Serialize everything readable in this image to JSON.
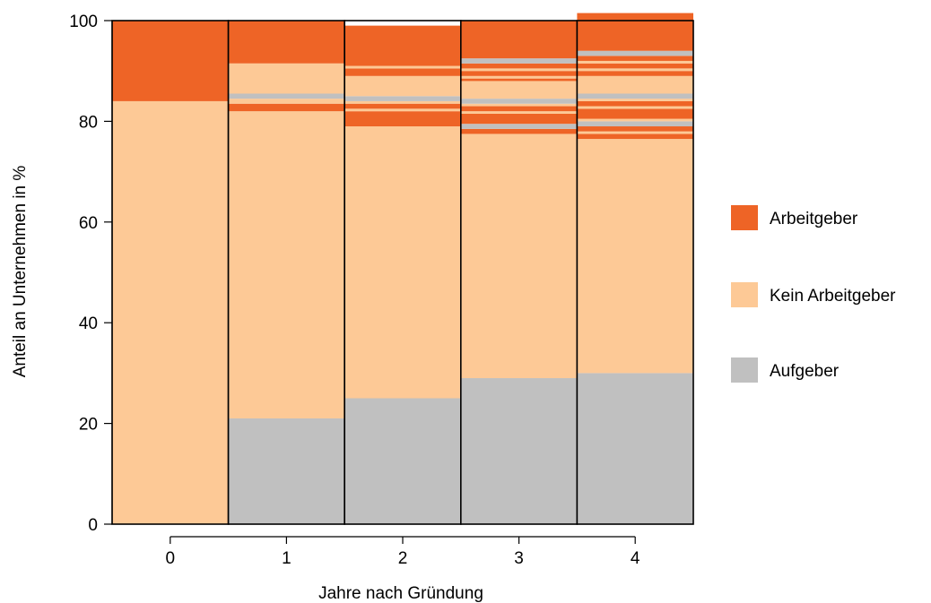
{
  "chart_data": {
    "type": "bar",
    "stacked": true,
    "xlabel": "Jahre nach Gründung",
    "ylabel": "Anteil an Unternehmen in %",
    "ylim": [
      0,
      100
    ],
    "yticks": [
      0,
      20,
      40,
      60,
      80,
      100
    ],
    "grid": false,
    "legend_position": "right",
    "categories": [
      "0",
      "1",
      "2",
      "3",
      "4"
    ],
    "legend": [
      {
        "label": "Arbeitgeber",
        "color": "#ee6426"
      },
      {
        "label": "Kein Arbeitgeber",
        "color": "#fdc996"
      },
      {
        "label": "Aufgeber",
        "color": "#c0c0c0"
      }
    ],
    "segments": [
      [
        {
          "status": "Kein Arbeitgeber",
          "value": 84
        },
        {
          "status": "Arbeitgeber",
          "value": 16
        }
      ],
      [
        {
          "status": "Aufgeber",
          "value": 21
        },
        {
          "status": "Kein Arbeitgeber",
          "value": 61
        },
        {
          "status": "Arbeitgeber",
          "value": 1.5
        },
        {
          "status": "Kein Arbeitgeber",
          "value": 1
        },
        {
          "status": "Aufgeber",
          "value": 1
        },
        {
          "status": "Kein Arbeitgeber",
          "value": 6
        },
        {
          "status": "Arbeitgeber",
          "value": 8.5
        }
      ],
      [
        {
          "status": "Aufgeber",
          "value": 25
        },
        {
          "status": "Kein Arbeitgeber",
          "value": 54
        },
        {
          "status": "Arbeitgeber",
          "value": 3
        },
        {
          "status": "Kein Arbeitgeber",
          "value": 0.5
        },
        {
          "status": "Arbeitgeber",
          "value": 1
        },
        {
          "status": "Kein Arbeitgeber",
          "value": 0.5
        },
        {
          "status": "Aufgeber",
          "value": 1
        },
        {
          "status": "Kein Arbeitgeber",
          "value": 4
        },
        {
          "status": "Arbeitgeber",
          "value": 1.5
        },
        {
          "status": "Kein Arbeitgeber",
          "value": 0.5
        },
        {
          "status": "Arbeitgeber",
          "value": 8
        }
      ],
      [
        {
          "status": "Aufgeber",
          "value": 29
        },
        {
          "status": "Kein Arbeitgeber",
          "value": 48.5
        },
        {
          "status": "Arbeitgeber",
          "value": 1
        },
        {
          "status": "Aufgeber",
          "value": 1
        },
        {
          "status": "Arbeitgeber",
          "value": 2
        },
        {
          "status": "Kein Arbeitgeber",
          "value": 0.5
        },
        {
          "status": "Arbeitgeber",
          "value": 1
        },
        {
          "status": "Kein Arbeitgeber",
          "value": 0.5
        },
        {
          "status": "Aufgeber",
          "value": 1
        },
        {
          "status": "Kein Arbeitgeber",
          "value": 3.5
        },
        {
          "status": "Arbeitgeber",
          "value": 0.5
        },
        {
          "status": "Kein Arbeitgeber",
          "value": 0.5
        },
        {
          "status": "Arbeitgeber",
          "value": 1
        },
        {
          "status": "Kein Arbeitgeber",
          "value": 0.5
        },
        {
          "status": "Arbeitgeber",
          "value": 1
        },
        {
          "status": "Aufgeber",
          "value": 1
        },
        {
          "status": "Arbeitgeber",
          "value": 7.5
        }
      ],
      [
        {
          "status": "Aufgeber",
          "value": 30
        },
        {
          "status": "Kein Arbeitgeber",
          "value": 46.5
        },
        {
          "status": "Arbeitgeber",
          "value": 1
        },
        {
          "status": "Kein Arbeitgeber",
          "value": 0.5
        },
        {
          "status": "Arbeitgeber",
          "value": 1
        },
        {
          "status": "Aufgeber",
          "value": 1
        },
        {
          "status": "Kein Arbeitgeber",
          "value": 0.5
        },
        {
          "status": "Arbeitgeber",
          "value": 2
        },
        {
          "status": "Kein Arbeitgeber",
          "value": 0.5
        },
        {
          "status": "Arbeitgeber",
          "value": 1
        },
        {
          "status": "Kein Arbeitgeber",
          "value": 0.5
        },
        {
          "status": "Aufgeber",
          "value": 1
        },
        {
          "status": "Kein Arbeitgeber",
          "value": 3.5
        },
        {
          "status": "Arbeitgeber",
          "value": 1
        },
        {
          "status": "Kein Arbeitgeber",
          "value": 0.5
        },
        {
          "status": "Arbeitgeber",
          "value": 1
        },
        {
          "status": "Kein Arbeitgeber",
          "value": 0.5
        },
        {
          "status": "Arbeitgeber",
          "value": 1
        },
        {
          "status": "Aufgeber",
          "value": 1
        },
        {
          "status": "Arbeitgeber",
          "value": 7.5
        }
      ]
    ]
  }
}
